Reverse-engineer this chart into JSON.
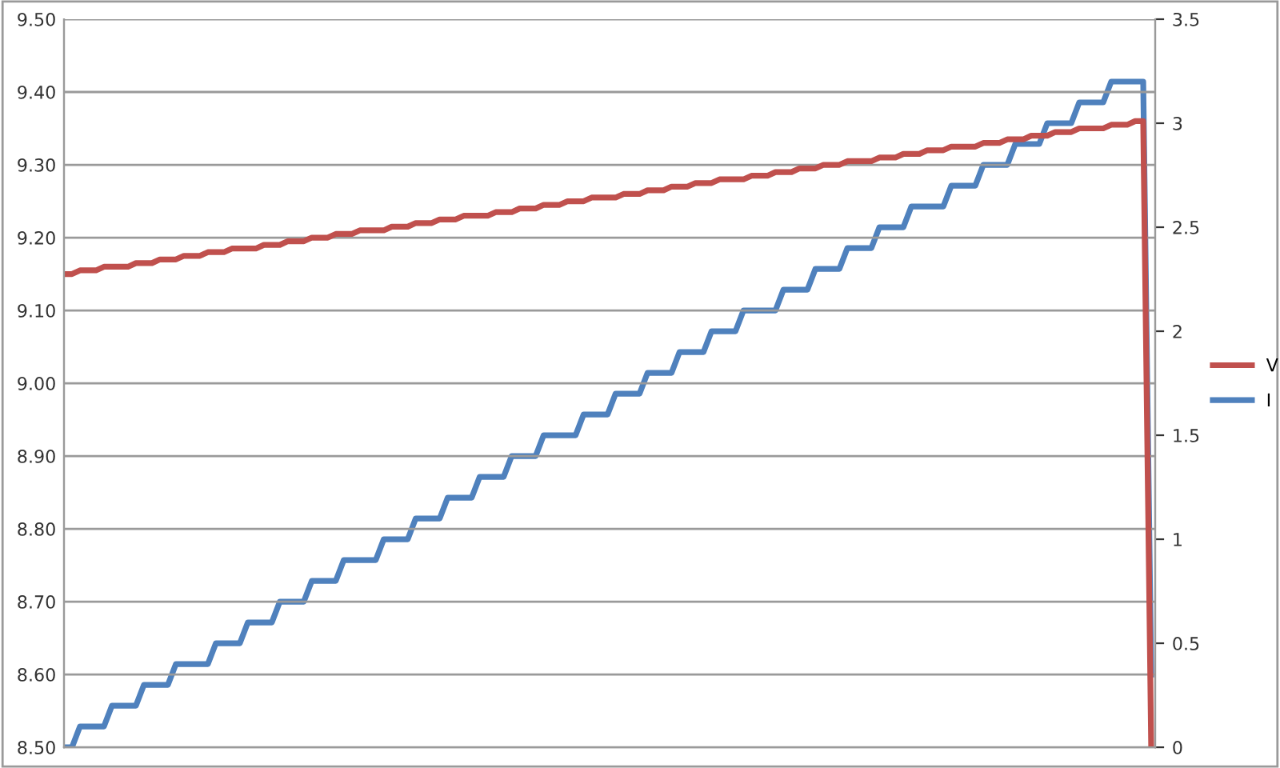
{
  "chart_data": {
    "type": "line",
    "categories": [
      null,
      null,
      null,
      null,
      null,
      null,
      null,
      null,
      null,
      null,
      null,
      null,
      null,
      null,
      null,
      null,
      null,
      null,
      null,
      null,
      null,
      null,
      null,
      null,
      null,
      null,
      null,
      null,
      null,
      null,
      null,
      null,
      null,
      null,
      null,
      null,
      null,
      null,
      null,
      null,
      null,
      null,
      null,
      null,
      null,
      null,
      null,
      null,
      null,
      null,
      null,
      null,
      null,
      null,
      null,
      null,
      null,
      null,
      null,
      null,
      null,
      null,
      null,
      null,
      null,
      null,
      null,
      null,
      null,
      null,
      null,
      null,
      null,
      null,
      null,
      null,
      null,
      null,
      null,
      null,
      null,
      null,
      null,
      null,
      null,
      null,
      null,
      null,
      null,
      null,
      null,
      null,
      null,
      null,
      null,
      null,
      null,
      null,
      null,
      null,
      null,
      null,
      null,
      null,
      null,
      null,
      null,
      null,
      null,
      null,
      null,
      null,
      null,
      null,
      null,
      null,
      null,
      null,
      null,
      null,
      null,
      null,
      null,
      null,
      null,
      null,
      null,
      null,
      null,
      null,
      null,
      null,
      null,
      null,
      null,
      null,
      null
    ],
    "series": [
      {
        "name": "V",
        "color": "#c0504d",
        "values": [
          9.15,
          9.15,
          9.155,
          9.155,
          9.155,
          9.16,
          9.16,
          9.16,
          9.16,
          9.165,
          9.165,
          9.165,
          9.17,
          9.17,
          9.17,
          9.175,
          9.175,
          9.175,
          9.18,
          9.18,
          9.18,
          9.185,
          9.185,
          9.185,
          9.185,
          9.19,
          9.19,
          9.19,
          9.195,
          9.195,
          9.195,
          9.2,
          9.2,
          9.2,
          9.205,
          9.205,
          9.205,
          9.21,
          9.21,
          9.21,
          9.21,
          9.215,
          9.215,
          9.215,
          9.22,
          9.22,
          9.22,
          9.225,
          9.225,
          9.225,
          9.23,
          9.23,
          9.23,
          9.23,
          9.235,
          9.235,
          9.235,
          9.24,
          9.24,
          9.24,
          9.245,
          9.245,
          9.245,
          9.25,
          9.25,
          9.25,
          9.255,
          9.255,
          9.255,
          9.255,
          9.26,
          9.26,
          9.26,
          9.265,
          9.265,
          9.265,
          9.27,
          9.27,
          9.27,
          9.275,
          9.275,
          9.275,
          9.28,
          9.28,
          9.28,
          9.28,
          9.285,
          9.285,
          9.285,
          9.29,
          9.29,
          9.29,
          9.295,
          9.295,
          9.295,
          9.3,
          9.3,
          9.3,
          9.305,
          9.305,
          9.305,
          9.305,
          9.31,
          9.31,
          9.31,
          9.315,
          9.315,
          9.315,
          9.32,
          9.32,
          9.32,
          9.325,
          9.325,
          9.325,
          9.325,
          9.33,
          9.33,
          9.33,
          9.335,
          9.335,
          9.335,
          9.34,
          9.34,
          9.34,
          9.345,
          9.345,
          9.345,
          9.35,
          9.35,
          9.35,
          9.35,
          9.355,
          9.355,
          9.355,
          9.36,
          9.36,
          8.5
        ]
      },
      {
        "name": "I",
        "color": "#4f81bd",
        "axis": "y2",
        "values": [
          0,
          0,
          0.1,
          0.1,
          0.1,
          0.1,
          0.2,
          0.2,
          0.2,
          0.2,
          0.3,
          0.3,
          0.3,
          0.3,
          0.4,
          0.4,
          0.4,
          0.4,
          0.4,
          0.5,
          0.5,
          0.5,
          0.5,
          0.6,
          0.6,
          0.6,
          0.6,
          0.7,
          0.7,
          0.7,
          0.7,
          0.8,
          0.8,
          0.8,
          0.8,
          0.9,
          0.9,
          0.9,
          0.9,
          0.9,
          1.0,
          1.0,
          1.0,
          1.0,
          1.1,
          1.1,
          1.1,
          1.1,
          1.2,
          1.2,
          1.2,
          1.2,
          1.3,
          1.3,
          1.3,
          1.3,
          1.4,
          1.4,
          1.4,
          1.4,
          1.5,
          1.5,
          1.5,
          1.5,
          1.5,
          1.6,
          1.6,
          1.6,
          1.6,
          1.7,
          1.7,
          1.7,
          1.7,
          1.8,
          1.8,
          1.8,
          1.8,
          1.9,
          1.9,
          1.9,
          1.9,
          2.0,
          2.0,
          2.0,
          2.0,
          2.1,
          2.1,
          2.1,
          2.1,
          2.1,
          2.2,
          2.2,
          2.2,
          2.2,
          2.3,
          2.3,
          2.3,
          2.3,
          2.4,
          2.4,
          2.4,
          2.4,
          2.5,
          2.5,
          2.5,
          2.5,
          2.6,
          2.6,
          2.6,
          2.6,
          2.6,
          2.7,
          2.7,
          2.7,
          2.7,
          2.8,
          2.8,
          2.8,
          2.8,
          2.9,
          2.9,
          2.9,
          2.9,
          3.0,
          3.0,
          3.0,
          3.0,
          3.1,
          3.1,
          3.1,
          3.1,
          3.2,
          3.2,
          3.2,
          3.2,
          3.2,
          0.35
        ]
      }
    ],
    "ylim": [
      8.5,
      9.5
    ],
    "yticks": [
      {
        "value": 8.5,
        "label": "8.50"
      },
      {
        "value": 8.6,
        "label": "8.60"
      },
      {
        "value": 8.7,
        "label": "8.70"
      },
      {
        "value": 8.8,
        "label": "8.80"
      },
      {
        "value": 8.9,
        "label": "8.90"
      },
      {
        "value": 9.0,
        "label": "9.00"
      },
      {
        "value": 9.1,
        "label": "9.10"
      },
      {
        "value": 9.2,
        "label": "9.20"
      },
      {
        "value": 9.3,
        "label": "9.30"
      },
      {
        "value": 9.4,
        "label": "9.40"
      },
      {
        "value": 9.5,
        "label": "9.50"
      }
    ],
    "y2lim": [
      0,
      3.5
    ],
    "y2ticks": [
      0,
      0.5,
      1,
      1.5,
      2,
      2.5,
      3,
      3.5
    ],
    "grid": "y",
    "legend": "right",
    "marker": "none",
    "line_style": "solid"
  }
}
